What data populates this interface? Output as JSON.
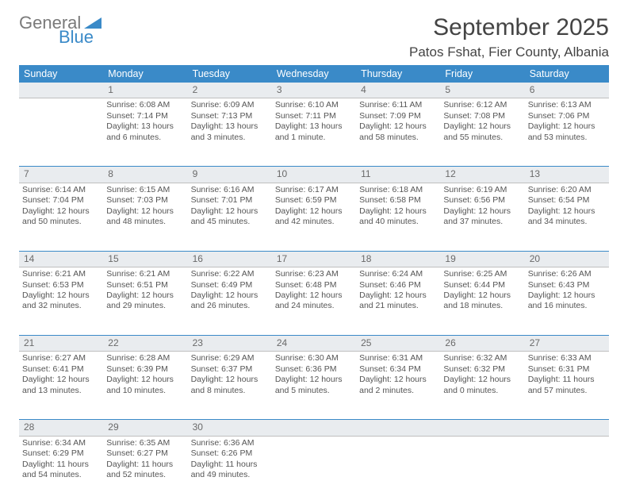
{
  "brand": {
    "top": "General",
    "bottom": "Blue",
    "tri_color": "#3a8ac8"
  },
  "title": "September 2025",
  "location": "Patos Fshat, Fier County, Albania",
  "day_headers": [
    "Sunday",
    "Monday",
    "Tuesday",
    "Wednesday",
    "Thursday",
    "Friday",
    "Saturday"
  ],
  "header_bg": "#3a8ac8",
  "stripe_bg": "#e9ecef",
  "text_color": "#555555",
  "weeks": [
    {
      "nums": [
        "",
        "1",
        "2",
        "3",
        "4",
        "5",
        "6"
      ],
      "cells": [
        {
          "lines": []
        },
        {
          "lines": [
            "Sunrise: 6:08 AM",
            "Sunset: 7:14 PM",
            "Daylight: 13 hours",
            "and 6 minutes."
          ]
        },
        {
          "lines": [
            "Sunrise: 6:09 AM",
            "Sunset: 7:13 PM",
            "Daylight: 13 hours",
            "and 3 minutes."
          ]
        },
        {
          "lines": [
            "Sunrise: 6:10 AM",
            "Sunset: 7:11 PM",
            "Daylight: 13 hours",
            "and 1 minute."
          ]
        },
        {
          "lines": [
            "Sunrise: 6:11 AM",
            "Sunset: 7:09 PM",
            "Daylight: 12 hours",
            "and 58 minutes."
          ]
        },
        {
          "lines": [
            "Sunrise: 6:12 AM",
            "Sunset: 7:08 PM",
            "Daylight: 12 hours",
            "and 55 minutes."
          ]
        },
        {
          "lines": [
            "Sunrise: 6:13 AM",
            "Sunset: 7:06 PM",
            "Daylight: 12 hours",
            "and 53 minutes."
          ]
        }
      ]
    },
    {
      "nums": [
        "7",
        "8",
        "9",
        "10",
        "11",
        "12",
        "13"
      ],
      "cells": [
        {
          "lines": [
            "Sunrise: 6:14 AM",
            "Sunset: 7:04 PM",
            "Daylight: 12 hours",
            "and 50 minutes."
          ]
        },
        {
          "lines": [
            "Sunrise: 6:15 AM",
            "Sunset: 7:03 PM",
            "Daylight: 12 hours",
            "and 48 minutes."
          ]
        },
        {
          "lines": [
            "Sunrise: 6:16 AM",
            "Sunset: 7:01 PM",
            "Daylight: 12 hours",
            "and 45 minutes."
          ]
        },
        {
          "lines": [
            "Sunrise: 6:17 AM",
            "Sunset: 6:59 PM",
            "Daylight: 12 hours",
            "and 42 minutes."
          ]
        },
        {
          "lines": [
            "Sunrise: 6:18 AM",
            "Sunset: 6:58 PM",
            "Daylight: 12 hours",
            "and 40 minutes."
          ]
        },
        {
          "lines": [
            "Sunrise: 6:19 AM",
            "Sunset: 6:56 PM",
            "Daylight: 12 hours",
            "and 37 minutes."
          ]
        },
        {
          "lines": [
            "Sunrise: 6:20 AM",
            "Sunset: 6:54 PM",
            "Daylight: 12 hours",
            "and 34 minutes."
          ]
        }
      ]
    },
    {
      "nums": [
        "14",
        "15",
        "16",
        "17",
        "18",
        "19",
        "20"
      ],
      "cells": [
        {
          "lines": [
            "Sunrise: 6:21 AM",
            "Sunset: 6:53 PM",
            "Daylight: 12 hours",
            "and 32 minutes."
          ]
        },
        {
          "lines": [
            "Sunrise: 6:21 AM",
            "Sunset: 6:51 PM",
            "Daylight: 12 hours",
            "and 29 minutes."
          ]
        },
        {
          "lines": [
            "Sunrise: 6:22 AM",
            "Sunset: 6:49 PM",
            "Daylight: 12 hours",
            "and 26 minutes."
          ]
        },
        {
          "lines": [
            "Sunrise: 6:23 AM",
            "Sunset: 6:48 PM",
            "Daylight: 12 hours",
            "and 24 minutes."
          ]
        },
        {
          "lines": [
            "Sunrise: 6:24 AM",
            "Sunset: 6:46 PM",
            "Daylight: 12 hours",
            "and 21 minutes."
          ]
        },
        {
          "lines": [
            "Sunrise: 6:25 AM",
            "Sunset: 6:44 PM",
            "Daylight: 12 hours",
            "and 18 minutes."
          ]
        },
        {
          "lines": [
            "Sunrise: 6:26 AM",
            "Sunset: 6:43 PM",
            "Daylight: 12 hours",
            "and 16 minutes."
          ]
        }
      ]
    },
    {
      "nums": [
        "21",
        "22",
        "23",
        "24",
        "25",
        "26",
        "27"
      ],
      "cells": [
        {
          "lines": [
            "Sunrise: 6:27 AM",
            "Sunset: 6:41 PM",
            "Daylight: 12 hours",
            "and 13 minutes."
          ]
        },
        {
          "lines": [
            "Sunrise: 6:28 AM",
            "Sunset: 6:39 PM",
            "Daylight: 12 hours",
            "and 10 minutes."
          ]
        },
        {
          "lines": [
            "Sunrise: 6:29 AM",
            "Sunset: 6:37 PM",
            "Daylight: 12 hours",
            "and 8 minutes."
          ]
        },
        {
          "lines": [
            "Sunrise: 6:30 AM",
            "Sunset: 6:36 PM",
            "Daylight: 12 hours",
            "and 5 minutes."
          ]
        },
        {
          "lines": [
            "Sunrise: 6:31 AM",
            "Sunset: 6:34 PM",
            "Daylight: 12 hours",
            "and 2 minutes."
          ]
        },
        {
          "lines": [
            "Sunrise: 6:32 AM",
            "Sunset: 6:32 PM",
            "Daylight: 12 hours",
            "and 0 minutes."
          ]
        },
        {
          "lines": [
            "Sunrise: 6:33 AM",
            "Sunset: 6:31 PM",
            "Daylight: 11 hours",
            "and 57 minutes."
          ]
        }
      ]
    },
    {
      "nums": [
        "28",
        "29",
        "30",
        "",
        "",
        "",
        ""
      ],
      "cells": [
        {
          "lines": [
            "Sunrise: 6:34 AM",
            "Sunset: 6:29 PM",
            "Daylight: 11 hours",
            "and 54 minutes."
          ]
        },
        {
          "lines": [
            "Sunrise: 6:35 AM",
            "Sunset: 6:27 PM",
            "Daylight: 11 hours",
            "and 52 minutes."
          ]
        },
        {
          "lines": [
            "Sunrise: 6:36 AM",
            "Sunset: 6:26 PM",
            "Daylight: 11 hours",
            "and 49 minutes."
          ]
        },
        {
          "lines": []
        },
        {
          "lines": []
        },
        {
          "lines": []
        },
        {
          "lines": []
        }
      ]
    }
  ]
}
